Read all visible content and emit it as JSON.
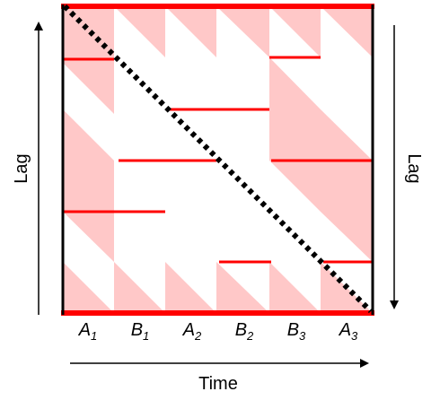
{
  "axes": {
    "left_label": "Lag",
    "right_label": "Lag",
    "bottom_label": "Time"
  },
  "segments": [
    {
      "base": "A",
      "sub": "1"
    },
    {
      "base": "B",
      "sub": "1"
    },
    {
      "base": "A",
      "sub": "2"
    },
    {
      "base": "B",
      "sub": "2"
    },
    {
      "base": "B",
      "sub": "3"
    },
    {
      "base": "A",
      "sub": "3"
    }
  ],
  "colors": {
    "shade": "#ffc8c8",
    "marker": "#ff0000",
    "frame": "#000000",
    "diagonal": "#000000"
  },
  "lag_rows": 6
}
